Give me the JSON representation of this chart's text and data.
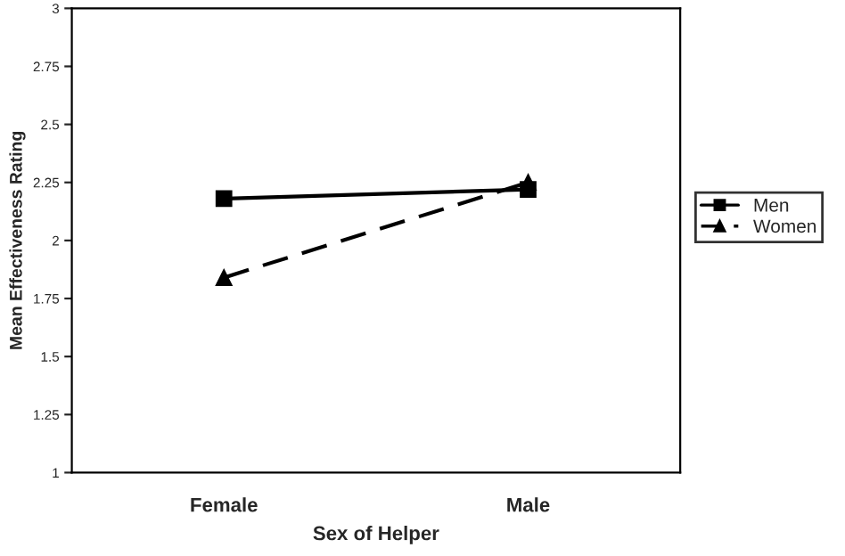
{
  "chart_data": {
    "type": "line",
    "xlabel": "Sex of Helper",
    "ylabel": "Mean Effectiveness Rating",
    "categories": [
      "Female",
      "Male"
    ],
    "series": [
      {
        "name": "Men",
        "color": "#000000",
        "values": [
          2.18,
          2.22
        ],
        "marker": "square",
        "line_style": "solid"
      },
      {
        "name": "Women",
        "color": "#000000",
        "values": [
          1.84,
          2.25
        ],
        "marker": "triangle",
        "line_style": "dashed"
      }
    ],
    "ylim": [
      1,
      3
    ],
    "yticks": [
      1,
      1.25,
      1.5,
      1.75,
      2,
      2.25,
      2.5,
      2.75,
      3
    ],
    "grid": false,
    "legend": "right"
  }
}
